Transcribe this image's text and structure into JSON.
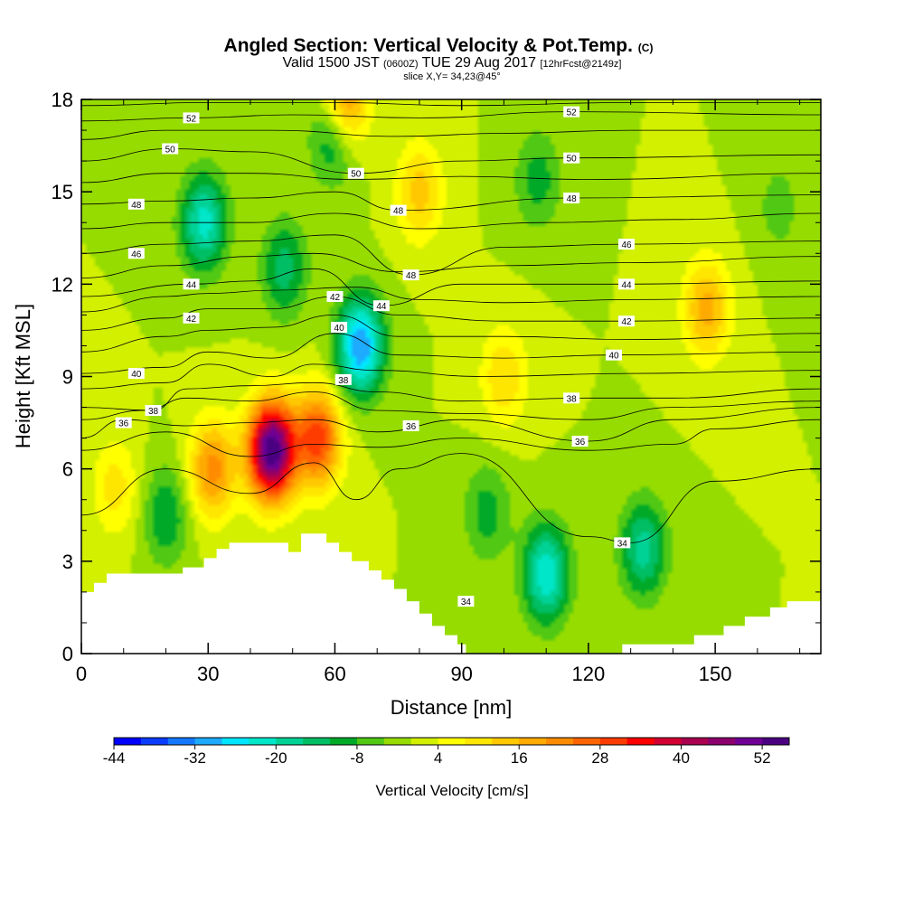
{
  "chart_data": {
    "type": "heatmap",
    "title": "Angled Section: Vertical Velocity & Pot.Temp.",
    "title_mark": "(C)",
    "subtitle_main_a": "Valid 1500 JST",
    "subtitle_utc": "(0600Z)",
    "subtitle_main_b": "TUE 29 Aug 2017",
    "subtitle_fcst": "[12hrFcst@2149z]",
    "slice_note": "slice X,Y= 34,23@45°",
    "xlabel": "Distance [nm]",
    "ylabel": "Height [Kft MSL]",
    "xlim": [
      0,
      175
    ],
    "ylim": [
      0,
      18
    ],
    "x_ticks": [
      0,
      30,
      60,
      90,
      120,
      150
    ],
    "y_ticks": [
      0,
      3,
      6,
      9,
      12,
      15,
      18
    ],
    "colorbar": {
      "label": "Vertical Velocity [cm/s]",
      "min": -44,
      "max": 56,
      "step": 4,
      "tick_values": [
        -44,
        -32,
        -20,
        -8,
        4,
        16,
        28,
        40,
        52
      ],
      "colors": [
        "#0000ff",
        "#0a3cff",
        "#1478ff",
        "#1eaaff",
        "#00e6ff",
        "#00e6c8",
        "#00d296",
        "#00be64",
        "#00aa28",
        "#50c814",
        "#96dc00",
        "#d2f000",
        "#ffff00",
        "#ffe600",
        "#ffc800",
        "#ffaa00",
        "#ff8c00",
        "#ff6400",
        "#ff3c00",
        "#ff0000",
        "#d20032",
        "#aa0050",
        "#8c006e",
        "#6e0096",
        "#4b0082"
      ]
    },
    "velocity_centers": [
      {
        "x": 45,
        "z": 6.6,
        "w": 56
      },
      {
        "x": 56,
        "z": 7.0,
        "w": 30
      },
      {
        "x": 31,
        "z": 6.0,
        "w": 22
      },
      {
        "x": 62,
        "z": 17.8,
        "w": 30
      },
      {
        "x": 8,
        "z": 5.4,
        "w": 10
      },
      {
        "x": 148,
        "z": 11.2,
        "w": 18
      },
      {
        "x": 29,
        "z": 14.0,
        "w": -22
      },
      {
        "x": 48,
        "z": 12.5,
        "w": -14
      },
      {
        "x": 66,
        "z": 10.0,
        "w": -32
      },
      {
        "x": 60,
        "z": 17.0,
        "w": -22
      },
      {
        "x": 110,
        "z": 2.6,
        "w": -24
      },
      {
        "x": 133,
        "z": 3.4,
        "w": -18
      },
      {
        "x": 96,
        "z": 4.6,
        "w": -10
      },
      {
        "x": 20,
        "z": 4.5,
        "w": -12
      },
      {
        "x": 108,
        "z": 15.4,
        "w": -10
      },
      {
        "x": 165,
        "z": 14.5,
        "w": -6
      },
      {
        "x": 100,
        "z": 9.0,
        "w": 12
      },
      {
        "x": 80,
        "z": 15.0,
        "w": 14
      }
    ],
    "theta_labels": [
      {
        "text": "52",
        "x": 26,
        "z": 17.4
      },
      {
        "text": "50",
        "x": 21,
        "z": 16.4
      },
      {
        "text": "48",
        "x": 13,
        "z": 14.6
      },
      {
        "text": "46",
        "x": 13,
        "z": 13.0
      },
      {
        "text": "44",
        "x": 26,
        "z": 12.0
      },
      {
        "text": "42",
        "x": 26,
        "z": 10.9
      },
      {
        "text": "40",
        "x": 13,
        "z": 9.1
      },
      {
        "text": "38",
        "x": 17,
        "z": 7.9
      },
      {
        "text": "36",
        "x": 10,
        "z": 7.5
      },
      {
        "text": "50",
        "x": 65,
        "z": 15.6
      },
      {
        "text": "48",
        "x": 75,
        "z": 14.4
      },
      {
        "text": "48",
        "x": 78,
        "z": 12.3
      },
      {
        "text": "42",
        "x": 60,
        "z": 11.6
      },
      {
        "text": "44",
        "x": 71,
        "z": 11.3
      },
      {
        "text": "40",
        "x": 61,
        "z": 10.6
      },
      {
        "text": "38",
        "x": 62,
        "z": 8.9
      },
      {
        "text": "36",
        "x": 78,
        "z": 7.4
      },
      {
        "text": "52",
        "x": 116,
        "z": 17.6
      },
      {
        "text": "50",
        "x": 116,
        "z": 16.1
      },
      {
        "text": "48",
        "x": 116,
        "z": 14.8
      },
      {
        "text": "46",
        "x": 129,
        "z": 13.3
      },
      {
        "text": "44",
        "x": 129,
        "z": 12.0
      },
      {
        "text": "42",
        "x": 129,
        "z": 10.8
      },
      {
        "text": "40",
        "x": 126,
        "z": 9.7
      },
      {
        "text": "38",
        "x": 116,
        "z": 8.3
      },
      {
        "text": "36",
        "x": 118,
        "z": 6.9
      },
      {
        "text": "34",
        "x": 128,
        "z": 3.6
      },
      {
        "text": "34",
        "x": 91,
        "z": 1.7
      }
    ],
    "theta_lines": [
      {
        "level": 34,
        "points": [
          [
            0,
            4.5
          ],
          [
            20,
            6.0
          ],
          [
            40,
            5.2
          ],
          [
            55,
            6.2
          ],
          [
            65,
            5.0
          ],
          [
            75,
            6.0
          ],
          [
            90,
            6.5
          ],
          [
            120,
            3.8
          ],
          [
            130,
            3.6
          ],
          [
            150,
            5.6
          ],
          [
            175,
            6.0
          ]
        ]
      },
      {
        "level": 35,
        "points": [
          [
            0,
            6.6
          ],
          [
            20,
            7.2
          ],
          [
            40,
            6.4
          ],
          [
            55,
            6.8
          ],
          [
            70,
            6.7
          ],
          [
            90,
            7.0
          ],
          [
            120,
            6.6
          ],
          [
            140,
            6.8
          ],
          [
            150,
            7.3
          ],
          [
            175,
            7.6
          ]
        ]
      },
      {
        "level": 36,
        "points": [
          [
            0,
            7.0
          ],
          [
            10,
            7.6
          ],
          [
            25,
            7.4
          ],
          [
            40,
            7.5
          ],
          [
            55,
            7.6
          ],
          [
            70,
            7.2
          ],
          [
            90,
            7.6
          ],
          [
            120,
            6.9
          ],
          [
            140,
            7.6
          ],
          [
            175,
            8.0
          ]
        ]
      },
      {
        "level": 37,
        "points": [
          [
            0,
            7.6
          ],
          [
            15,
            7.9
          ],
          [
            25,
            8.3
          ],
          [
            40,
            8.2
          ],
          [
            55,
            8.5
          ],
          [
            70,
            7.9
          ],
          [
            90,
            7.8
          ],
          [
            120,
            7.6
          ],
          [
            140,
            8.0
          ],
          [
            175,
            8.2
          ]
        ]
      },
      {
        "level": 38,
        "points": [
          [
            0,
            8.0
          ],
          [
            17,
            7.9
          ],
          [
            25,
            8.6
          ],
          [
            40,
            8.7
          ],
          [
            55,
            8.8
          ],
          [
            70,
            8.5
          ],
          [
            90,
            8.2
          ],
          [
            120,
            8.3
          ],
          [
            140,
            8.3
          ],
          [
            175,
            8.6
          ]
        ]
      },
      {
        "level": 39,
        "points": [
          [
            0,
            8.6
          ],
          [
            20,
            8.8
          ],
          [
            30,
            9.4
          ],
          [
            45,
            9.0
          ],
          [
            55,
            9.4
          ],
          [
            70,
            9.2
          ],
          [
            95,
            9.0
          ],
          [
            130,
            9.1
          ],
          [
            175,
            9.2
          ]
        ]
      },
      {
        "level": 40,
        "points": [
          [
            0,
            9.1
          ],
          [
            20,
            9.3
          ],
          [
            30,
            9.8
          ],
          [
            45,
            9.6
          ],
          [
            60,
            10.4
          ],
          [
            75,
            9.7
          ],
          [
            100,
            9.6
          ],
          [
            126,
            9.7
          ],
          [
            175,
            9.8
          ]
        ]
      },
      {
        "level": 41,
        "points": [
          [
            0,
            9.8
          ],
          [
            20,
            10.3
          ],
          [
            30,
            10.5
          ],
          [
            45,
            10.6
          ],
          [
            60,
            11.0
          ],
          [
            75,
            10.3
          ],
          [
            100,
            10.3
          ],
          [
            130,
            10.2
          ],
          [
            175,
            10.4
          ]
        ]
      },
      {
        "level": 42,
        "points": [
          [
            0,
            10.5
          ],
          [
            20,
            10.9
          ],
          [
            30,
            11.2
          ],
          [
            45,
            11.2
          ],
          [
            60,
            11.6
          ],
          [
            75,
            11.0
          ],
          [
            100,
            10.8
          ],
          [
            129,
            10.8
          ],
          [
            175,
            10.9
          ]
        ]
      },
      {
        "level": 43,
        "points": [
          [
            0,
            11.1
          ],
          [
            20,
            11.6
          ],
          [
            30,
            11.7
          ],
          [
            45,
            11.8
          ],
          [
            65,
            11.9
          ],
          [
            80,
            11.5
          ],
          [
            100,
            11.4
          ],
          [
            130,
            11.5
          ],
          [
            175,
            11.6
          ]
        ]
      },
      {
        "level": 44,
        "points": [
          [
            0,
            11.6
          ],
          [
            26,
            12.0
          ],
          [
            40,
            12.1
          ],
          [
            55,
            12.5
          ],
          [
            71,
            11.3
          ],
          [
            90,
            12.0
          ],
          [
            129,
            12.0
          ],
          [
            175,
            12.1
          ]
        ]
      },
      {
        "level": 45,
        "points": [
          [
            0,
            12.2
          ],
          [
            20,
            12.6
          ],
          [
            40,
            12.9
          ],
          [
            55,
            13.0
          ],
          [
            75,
            12.4
          ],
          [
            100,
            12.6
          ],
          [
            130,
            12.7
          ],
          [
            175,
            12.9
          ]
        ]
      },
      {
        "level": 46,
        "points": [
          [
            0,
            13.0
          ],
          [
            20,
            13.3
          ],
          [
            40,
            13.4
          ],
          [
            60,
            13.6
          ],
          [
            78,
            12.3
          ],
          [
            100,
            13.2
          ],
          [
            129,
            13.3
          ],
          [
            175,
            13.4
          ]
        ]
      },
      {
        "level": 47,
        "points": [
          [
            0,
            13.8
          ],
          [
            20,
            14.0
          ],
          [
            40,
            14.0
          ],
          [
            60,
            14.3
          ],
          [
            80,
            13.8
          ],
          [
            110,
            14.0
          ],
          [
            140,
            14.1
          ],
          [
            175,
            14.3
          ]
        ]
      },
      {
        "level": 48,
        "points": [
          [
            0,
            14.6
          ],
          [
            20,
            14.7
          ],
          [
            40,
            14.8
          ],
          [
            60,
            15.0
          ],
          [
            75,
            14.4
          ],
          [
            116,
            14.8
          ],
          [
            175,
            14.9
          ]
        ]
      },
      {
        "level": 49,
        "points": [
          [
            0,
            15.3
          ],
          [
            20,
            15.6
          ],
          [
            40,
            15.6
          ],
          [
            65,
            15.4
          ],
          [
            90,
            15.5
          ],
          [
            120,
            15.4
          ],
          [
            175,
            15.6
          ]
        ]
      },
      {
        "level": 50,
        "points": [
          [
            0,
            16.0
          ],
          [
            21,
            16.4
          ],
          [
            40,
            16.3
          ],
          [
            65,
            15.6
          ],
          [
            90,
            16.0
          ],
          [
            116,
            16.1
          ],
          [
            175,
            16.2
          ]
        ]
      },
      {
        "level": 51,
        "points": [
          [
            0,
            16.7
          ],
          [
            20,
            17.0
          ],
          [
            45,
            17.0
          ],
          [
            75,
            16.8
          ],
          [
            100,
            16.9
          ],
          [
            130,
            17.0
          ],
          [
            175,
            17.0
          ]
        ]
      },
      {
        "level": 52,
        "points": [
          [
            0,
            17.3
          ],
          [
            26,
            17.4
          ],
          [
            50,
            17.5
          ],
          [
            80,
            17.4
          ],
          [
            116,
            17.6
          ],
          [
            175,
            17.5
          ]
        ]
      },
      {
        "level": 53,
        "points": [
          [
            0,
            17.8
          ],
          [
            30,
            17.9
          ],
          [
            60,
            17.9
          ],
          [
            90,
            17.8
          ],
          [
            130,
            17.9
          ],
          [
            175,
            17.9
          ]
        ]
      }
    ],
    "terrain": [
      [
        0,
        2.0
      ],
      [
        3,
        2.0
      ],
      [
        3,
        2.3
      ],
      [
        6,
        2.3
      ],
      [
        6,
        2.6
      ],
      [
        10,
        2.6
      ],
      [
        24,
        2.6
      ],
      [
        24,
        2.8
      ],
      [
        29,
        2.8
      ],
      [
        29,
        3.1
      ],
      [
        32,
        3.1
      ],
      [
        32,
        3.4
      ],
      [
        35,
        3.4
      ],
      [
        35,
        3.6
      ],
      [
        49,
        3.6
      ],
      [
        49,
        3.3
      ],
      [
        52,
        3.3
      ],
      [
        52,
        3.9
      ],
      [
        58,
        3.9
      ],
      [
        58,
        3.6
      ],
      [
        61,
        3.6
      ],
      [
        61,
        3.3
      ],
      [
        64,
        3.3
      ],
      [
        64,
        3.0
      ],
      [
        68,
        3.0
      ],
      [
        68,
        2.7
      ],
      [
        71,
        2.7
      ],
      [
        71,
        2.4
      ],
      [
        74,
        2.4
      ],
      [
        74,
        2.1
      ],
      [
        77,
        2.1
      ],
      [
        77,
        1.7
      ],
      [
        80,
        1.7
      ],
      [
        80,
        1.3
      ],
      [
        83,
        1.3
      ],
      [
        83,
        0.9
      ],
      [
        86,
        0.9
      ],
      [
        86,
        0.6
      ],
      [
        89,
        0.6
      ],
      [
        89,
        0.3
      ],
      [
        91,
        0.3
      ],
      [
        91,
        0.0
      ],
      [
        128,
        0.0
      ],
      [
        128,
        0.3
      ],
      [
        145,
        0.3
      ],
      [
        145,
        0.6
      ],
      [
        152,
        0.6
      ],
      [
        152,
        0.9
      ],
      [
        157,
        0.9
      ],
      [
        157,
        1.2
      ],
      [
        163,
        1.2
      ],
      [
        163,
        1.5
      ],
      [
        167,
        1.5
      ],
      [
        167,
        1.7
      ],
      [
        175,
        1.7
      ]
    ]
  }
}
